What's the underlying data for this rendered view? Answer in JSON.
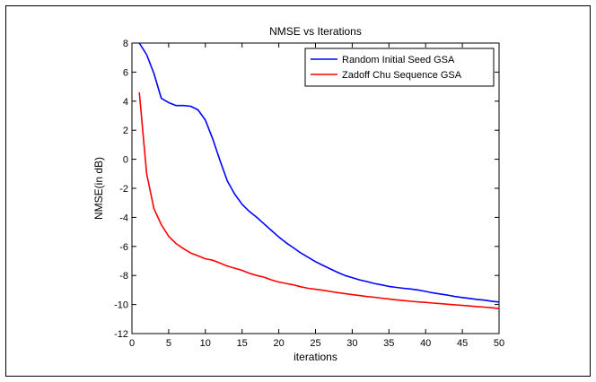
{
  "chart_data": {
    "type": "line",
    "title": "NMSE vs Iterations",
    "xlabel": "iterations",
    "ylabel": "NMSE(in dB)",
    "xlim": [
      0,
      50
    ],
    "ylim": [
      -12,
      8
    ],
    "xticks": [
      0,
      5,
      10,
      15,
      20,
      25,
      30,
      35,
      40,
      45,
      50
    ],
    "yticks": [
      -12,
      -10,
      -8,
      -6,
      -4,
      -2,
      0,
      2,
      4,
      6,
      8
    ],
    "grid": false,
    "legend_position": "top-right",
    "series": [
      {
        "name": "Random Initial Seed GSA",
        "color": "#0000ff",
        "x": [
          1,
          2,
          3,
          4,
          5,
          6,
          7,
          8,
          9,
          10,
          11,
          12,
          13,
          14,
          15,
          16,
          17,
          18,
          19,
          20,
          21,
          22,
          23,
          24,
          25,
          26,
          27,
          28,
          29,
          30,
          31,
          32,
          33,
          34,
          35,
          36,
          37,
          38,
          39,
          40,
          41,
          42,
          43,
          44,
          45,
          46,
          47,
          48,
          49,
          50
        ],
        "y": [
          8.0,
          7.2,
          5.9,
          4.2,
          3.9,
          3.7,
          3.7,
          3.65,
          3.4,
          2.7,
          1.4,
          -0.1,
          -1.5,
          -2.4,
          -3.1,
          -3.6,
          -4.0,
          -4.45,
          -4.9,
          -5.35,
          -5.75,
          -6.1,
          -6.45,
          -6.75,
          -7.05,
          -7.3,
          -7.55,
          -7.78,
          -8.0,
          -8.15,
          -8.3,
          -8.42,
          -8.55,
          -8.65,
          -8.75,
          -8.82,
          -8.88,
          -8.93,
          -9.0,
          -9.1,
          -9.2,
          -9.28,
          -9.35,
          -9.45,
          -9.52,
          -9.58,
          -9.65,
          -9.7,
          -9.77,
          -9.83
        ]
      },
      {
        "name": "Zadoff Chu Sequence GSA",
        "color": "#ff0000",
        "x": [
          1,
          2,
          3,
          4,
          5,
          6,
          7,
          8,
          9,
          10,
          11,
          12,
          13,
          14,
          15,
          16,
          17,
          18,
          19,
          20,
          21,
          22,
          23,
          24,
          25,
          26,
          27,
          28,
          29,
          30,
          31,
          32,
          33,
          34,
          35,
          36,
          37,
          38,
          39,
          40,
          41,
          42,
          43,
          44,
          45,
          46,
          47,
          48,
          49,
          50
        ],
        "y": [
          4.6,
          -1.0,
          -3.4,
          -4.5,
          -5.3,
          -5.8,
          -6.15,
          -6.45,
          -6.65,
          -6.85,
          -6.95,
          -7.15,
          -7.35,
          -7.5,
          -7.65,
          -7.85,
          -8.0,
          -8.12,
          -8.3,
          -8.45,
          -8.55,
          -8.65,
          -8.78,
          -8.88,
          -8.95,
          -9.02,
          -9.1,
          -9.18,
          -9.25,
          -9.32,
          -9.38,
          -9.45,
          -9.5,
          -9.56,
          -9.62,
          -9.68,
          -9.73,
          -9.78,
          -9.82,
          -9.85,
          -9.9,
          -9.94,
          -9.98,
          -10.02,
          -10.06,
          -10.1,
          -10.14,
          -10.18,
          -10.22,
          -10.28
        ]
      }
    ]
  }
}
